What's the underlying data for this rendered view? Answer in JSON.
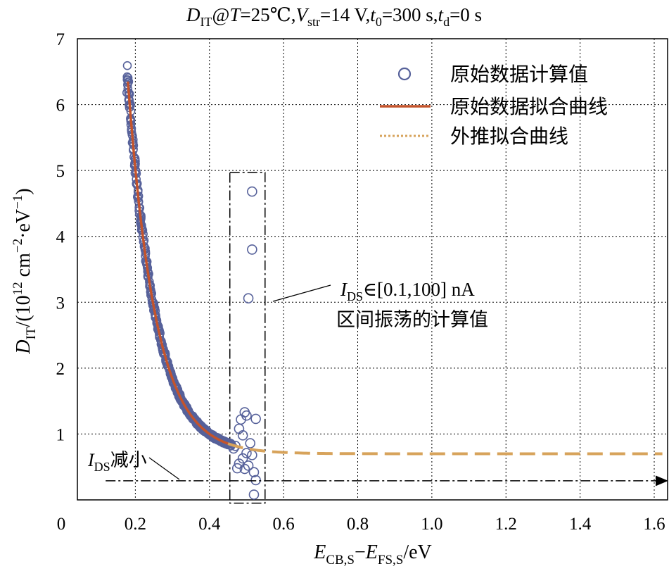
{
  "chart_data": {
    "type": "scatter",
    "title": "D_IT@T=25℃,V_str=14 V,t_0=300 s,t_d=0 s",
    "title_parts": {
      "D": "D",
      "IT": "IT",
      "at": "@",
      "T": "T",
      "eq_t": "=25℃,",
      "V": "V",
      "str": "str",
      "eq_v": "=14 V,",
      "t0": "t",
      "t0_sub": "0",
      "eq_t0": "=300 s,",
      "td": "t",
      "td_sub": "d",
      "eq_td": "=0 s"
    },
    "xlabel": "E_CB,S−E_FS,S/eV",
    "xlabel_parts": {
      "E1": "E",
      "sub1": "CB,S",
      "minus": "−",
      "E2": "E",
      "sub2": "FS,S",
      "unit": "/eV"
    },
    "ylabel": "D_IT/(10^12 cm^−2·eV^−1)",
    "ylabel_parts": {
      "D": "D",
      "sub": "IT",
      "pre": "/(10",
      "exp1": "12",
      "mid": " cm",
      "exp2": "−2",
      "mid2": "·eV",
      "exp3": "−1",
      "post": ")"
    },
    "xlim": [
      0,
      1.65
    ],
    "ylim": [
      0,
      7
    ],
    "xticks": [
      0,
      0.2,
      0.4,
      0.6,
      0.8,
      1.0,
      1.2,
      1.4,
      1.6
    ],
    "xtick_labels": [
      "0",
      "0.2",
      "0.4",
      "0.6",
      "0.8",
      "1.0",
      "1.2",
      "1.4",
      "1.6"
    ],
    "yticks": [
      1,
      2,
      3,
      4,
      5,
      6,
      7
    ],
    "ytick_labels": [
      "1",
      "2",
      "3",
      "4",
      "5",
      "6",
      "7"
    ],
    "grid": true,
    "legend_position": "top-right",
    "series": [
      {
        "name": "原始数据计算值",
        "kind": "scatter",
        "color": "#56619a",
        "description": "Many overlapping points following the fit from x≈0.18 (y≈6.35) to x≈0.46 (y≈0.85); main curve fitted by D=0.7+A·exp(−(x−0.18)/0.075)",
        "main_x_range": [
          0.18,
          0.46
        ],
        "scattered_points": [
          {
            "x": 0.515,
            "y": 4.68
          },
          {
            "x": 0.515,
            "y": 3.8
          },
          {
            "x": 0.505,
            "y": 3.06
          },
          {
            "x": 0.495,
            "y": 1.33
          },
          {
            "x": 0.485,
            "y": 1.22
          },
          {
            "x": 0.5,
            "y": 1.28
          },
          {
            "x": 0.525,
            "y": 1.23
          },
          {
            "x": 0.48,
            "y": 1.08
          },
          {
            "x": 0.49,
            "y": 0.98
          },
          {
            "x": 0.51,
            "y": 0.86
          },
          {
            "x": 0.47,
            "y": 0.82
          },
          {
            "x": 0.465,
            "y": 0.78
          },
          {
            "x": 0.5,
            "y": 0.71
          },
          {
            "x": 0.515,
            "y": 0.68
          },
          {
            "x": 0.49,
            "y": 0.63
          },
          {
            "x": 0.48,
            "y": 0.55
          },
          {
            "x": 0.505,
            "y": 0.52
          },
          {
            "x": 0.475,
            "y": 0.48
          },
          {
            "x": 0.495,
            "y": 0.47
          },
          {
            "x": 0.52,
            "y": 0.42
          },
          {
            "x": 0.525,
            "y": 0.3
          },
          {
            "x": 0.52,
            "y": 0.08
          }
        ]
      },
      {
        "name": "原始数据拟合曲线",
        "kind": "line",
        "color": "#c4542c",
        "x_range": [
          0.18,
          0.45
        ],
        "model": {
          "offset": 0.7,
          "amplitude": 5.65,
          "x0": 0.18,
          "decay": 0.075
        }
      },
      {
        "name": "外推拟合曲线",
        "kind": "dashed-line",
        "color": "#d7a35b",
        "x_range": [
          0.45,
          1.65
        ],
        "model": {
          "offset": 0.7,
          "amplitude": 5.65,
          "x0": 0.18,
          "decay": 0.075
        }
      }
    ],
    "annotations": {
      "box_label_I": "I",
      "box_label_sub": "DS",
      "box_label_rest": "∈[0.1,100] nA",
      "box_label_line2": "区间振荡的计算值",
      "box_region": {
        "x": [
          0.455,
          0.55
        ],
        "y": [
          -0.05,
          4.97
        ]
      },
      "arrow_label_I": "I",
      "arrow_label_sub": "DS",
      "arrow_label_rest": "减小",
      "arrow_y": 0.3,
      "arrow_x_range": [
        0.12,
        1.635
      ]
    },
    "colors": {
      "scatter": "#56619a",
      "fit": "#c4542c",
      "extrapolation": "#d7a35b",
      "grid": "#000000"
    }
  }
}
